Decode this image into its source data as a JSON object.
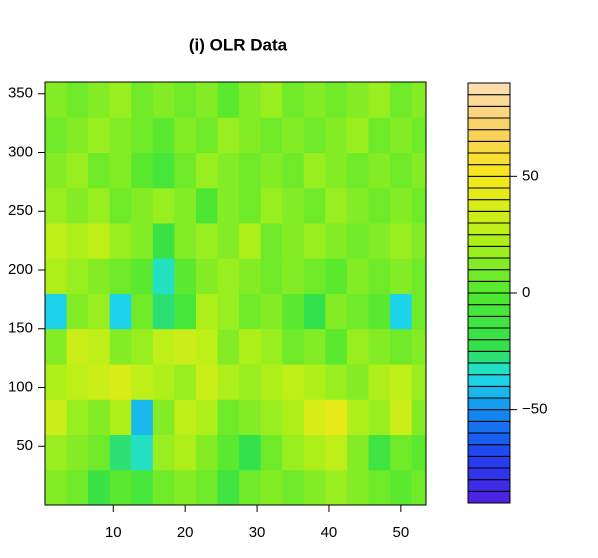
{
  "chart_data": {
    "type": "heatmap",
    "title": "(i) OLR Data",
    "x": [
      2,
      5,
      8,
      11,
      14,
      17,
      20,
      23,
      26,
      29,
      32,
      35,
      38,
      41,
      44,
      47,
      50,
      53
    ],
    "y": [
      15,
      45,
      75,
      105,
      135,
      165,
      195,
      225,
      255,
      285,
      315,
      345
    ],
    "z": [
      [
        10,
        5,
        -20,
        0,
        -10,
        5,
        10,
        5,
        -15,
        5,
        10,
        5,
        10,
        15,
        10,
        5,
        0,
        5
      ],
      [
        15,
        10,
        5,
        -30,
        -35,
        15,
        20,
        10,
        0,
        -25,
        5,
        15,
        20,
        25,
        10,
        -15,
        5,
        0
      ],
      [
        30,
        15,
        10,
        20,
        -45,
        10,
        25,
        20,
        5,
        10,
        15,
        20,
        35,
        40,
        20,
        15,
        30,
        10
      ],
      [
        20,
        25,
        30,
        35,
        25,
        20,
        15,
        30,
        20,
        15,
        20,
        25,
        20,
        15,
        10,
        20,
        25,
        15
      ],
      [
        10,
        30,
        25,
        10,
        15,
        25,
        30,
        25,
        10,
        20,
        15,
        5,
        10,
        0,
        15,
        10,
        5,
        10
      ],
      [
        -40,
        10,
        15,
        -40,
        5,
        -30,
        -10,
        20,
        15,
        5,
        10,
        0,
        -25,
        10,
        5,
        0,
        -40,
        5
      ],
      [
        20,
        15,
        10,
        5,
        0,
        -35,
        0,
        10,
        15,
        10,
        5,
        10,
        5,
        0,
        10,
        5,
        10,
        5
      ],
      [
        25,
        20,
        25,
        15,
        10,
        -20,
        10,
        15,
        10,
        20,
        5,
        10,
        15,
        10,
        5,
        10,
        15,
        10
      ],
      [
        15,
        10,
        15,
        5,
        10,
        15,
        10,
        -5,
        10,
        5,
        15,
        10,
        5,
        15,
        10,
        5,
        10,
        5
      ],
      [
        10,
        15,
        5,
        10,
        0,
        -10,
        5,
        15,
        10,
        5,
        10,
        5,
        15,
        10,
        5,
        10,
        5,
        10
      ],
      [
        5,
        10,
        15,
        10,
        5,
        0,
        10,
        5,
        15,
        10,
        5,
        10,
        5,
        10,
        15,
        5,
        10,
        5
      ],
      [
        10,
        5,
        10,
        15,
        5,
        10,
        5,
        10,
        0,
        10,
        15,
        5,
        10,
        5,
        10,
        15,
        5,
        10
      ]
    ],
    "xlim": [
      0.5,
      53.5
    ],
    "xticks": [
      10,
      20,
      30,
      40,
      50
    ],
    "ylim": [
      0,
      360
    ],
    "yticks": [
      50,
      100,
      150,
      200,
      250,
      300,
      350
    ],
    "zlim": [
      -90,
      90
    ],
    "level_step": 5,
    "zticks": [
      {
        "value": -50,
        "label": "−50"
      },
      0,
      50
    ],
    "colorscale": [
      [
        -90,
        "#5020e0"
      ],
      [
        -70,
        "#2040f0"
      ],
      [
        -50,
        "#1090f0"
      ],
      [
        -35,
        "#20e0e8"
      ],
      [
        -25,
        "#30e050"
      ],
      [
        0,
        "#50e830"
      ],
      [
        25,
        "#b8f018"
      ],
      [
        50,
        "#f8e818"
      ],
      [
        70,
        "#f8d060"
      ],
      [
        90,
        "#fce0b8"
      ]
    ]
  }
}
